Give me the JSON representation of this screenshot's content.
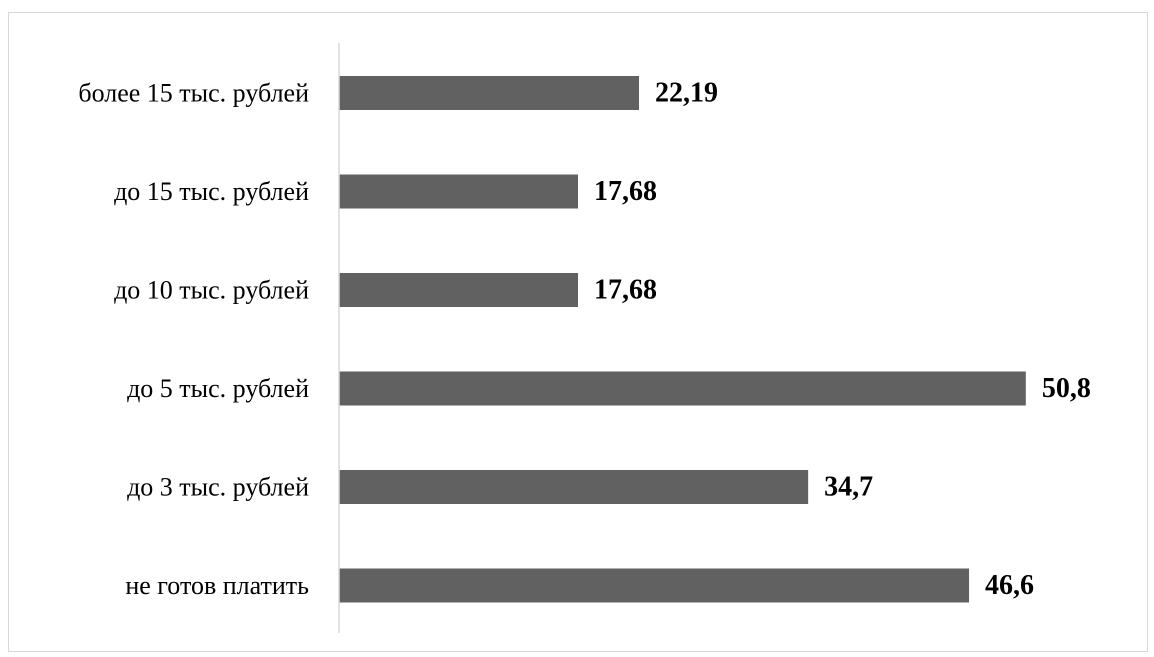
{
  "chart_data": {
    "type": "bar",
    "orientation": "horizontal",
    "categories": [
      "более 15 тыс. рублей",
      "до 15 тыс. рублей",
      "до 10 тыс. рублей",
      "до 5 тыс. рублей",
      "до 3 тыс. рублей",
      "не готов платить"
    ],
    "values": [
      22.19,
      17.68,
      17.68,
      50.8,
      34.7,
      46.6
    ],
    "value_labels": [
      "22,19",
      "17,68",
      "17,68",
      "50,8",
      "34,7",
      "46,6"
    ],
    "xlim": [
      0,
      55
    ],
    "grid": false,
    "legend": "none",
    "bar_color": "#616161",
    "axis_color": "#d9d9d9",
    "text_color": "#000000"
  }
}
